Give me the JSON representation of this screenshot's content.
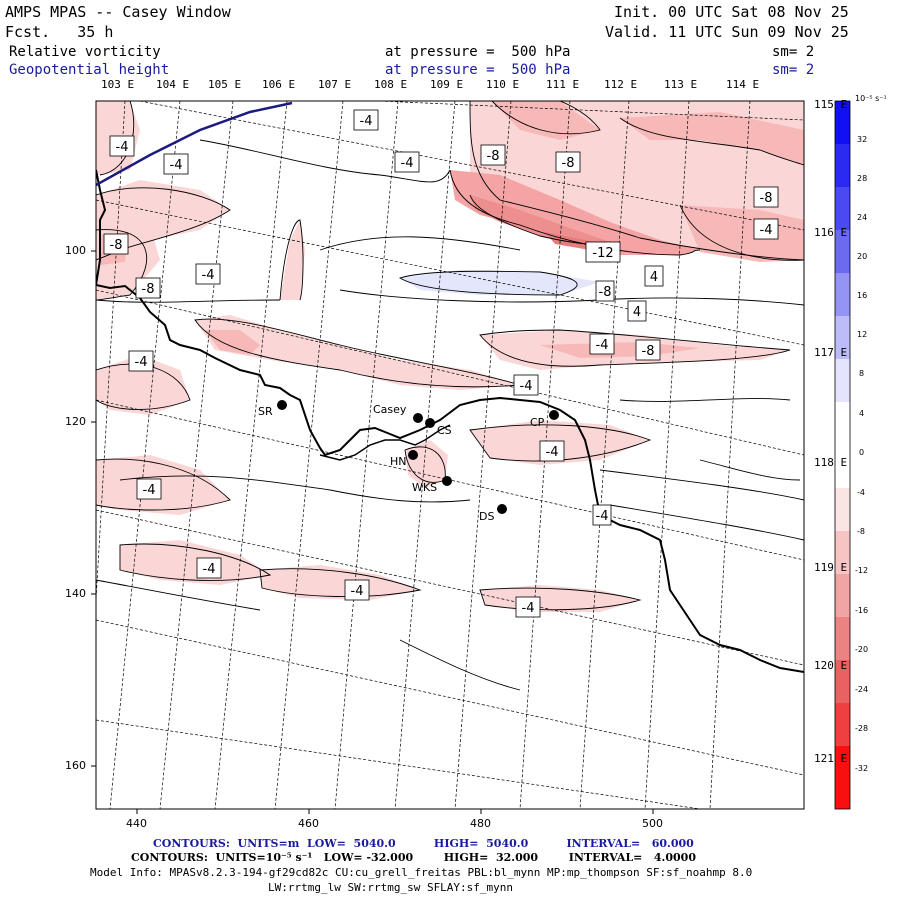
{
  "header": {
    "title": "AMPS MPAS -- Casey Window",
    "forecast": "Fcst.   35 h",
    "init": "Init. 00 UTC Sat 08 Nov 25",
    "valid": "Valid. 11 UTC Sun 09 Nov 25",
    "field1": "Relative vorticity",
    "field2": "Geopotential height",
    "pressure1": "at pressure =  500 hPa",
    "pressure2": "at pressure =  500 hPa",
    "sm1": "sm= 2",
    "sm2": "sm= 2"
  },
  "lon_labels_top": [
    "103 E",
    "104 E",
    "105 E",
    "106 E",
    "107 E",
    "108 E",
    "109 E",
    "110 E",
    "111 E",
    "112 E",
    "113 E",
    "114 E"
  ],
  "lon_labels_right": [
    "115 E",
    "116 E",
    "117 E",
    "118 E",
    "119 E",
    "120 E",
    "121 E"
  ],
  "x_ticks": [
    "440",
    "460",
    "480",
    "500"
  ],
  "y_ticks": [
    "100",
    "120",
    "140",
    "160"
  ],
  "stations": [
    {
      "name": "SR"
    },
    {
      "name": "Casey"
    },
    {
      "name": "CS"
    },
    {
      "name": "HN"
    },
    {
      "name": "WKS"
    },
    {
      "name": "CP"
    },
    {
      "name": "DS"
    }
  ],
  "contour_labels": [
    "-4",
    "-4",
    "-4",
    "-4",
    "-8",
    "-8",
    "-8",
    "-8",
    "-8",
    "-12",
    "-4",
    "-4",
    "-4",
    "-8",
    "4",
    "4",
    "-4",
    "-8",
    "-4",
    "-4",
    "-4",
    "-4",
    "-4",
    "-4",
    "-4",
    "-4"
  ],
  "colorbar": {
    "unit": "10⁻⁵ s⁻¹",
    "levels": [
      "32",
      "28",
      "24",
      "20",
      "16",
      "12",
      "8",
      "4",
      "0",
      "-4",
      "-8",
      "-12",
      "-16",
      "-20",
      "-24",
      "-28",
      "-32"
    ]
  },
  "footer": {
    "line1": "CONTOURS:  UNITS=m  LOW=  5040.0          HIGH=  5040.0          INTERVAL=   60.000",
    "line2": "CONTOURS:  UNITS=10⁻⁵ s⁻¹   LOW= -32.000        HIGH=  32.000        INTERVAL=   4.0000",
    "line3": "Model Info: MPASv8.2.3-194-gf29cd82c CU:cu_grell_freitas PBL:bl_mynn MP:mp_thompson SF:sf_noahmp 8.0",
    "line4": "LW:rrtmg_lw SW:rrtmg_sw SFLAY:sf_mynn"
  }
}
